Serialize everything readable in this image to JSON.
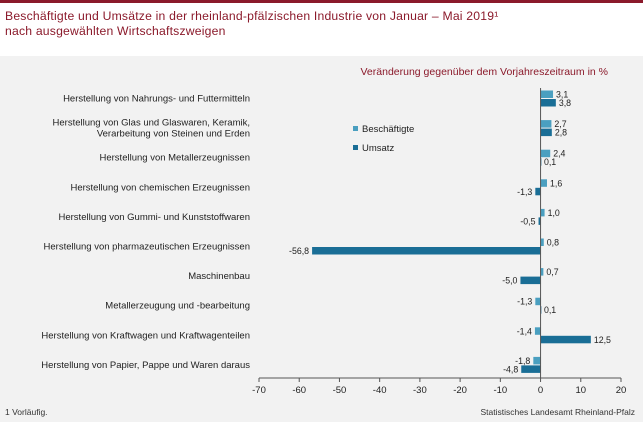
{
  "title_line1": "Beschäftigte und Umsätze in der rheinland-pfälzischen Industrie von Januar – Mai 2019¹",
  "title_line2": "nach ausgewählten Wirtschaftszweigen",
  "footnote": "1 Vorläufig.",
  "source": "Statistisches Landesamt Rheinland-Pfalz",
  "colors": {
    "accent": "#8b1a2b",
    "beschaeftigte": "#4a9fc0",
    "umsatz": "#1a6e96",
    "panel": "#f2f2f2"
  },
  "chart_data": {
    "type": "bar",
    "orientation": "horizontal",
    "subtitle": "Veränderung gegenüber dem Vorjahreszeitraum in %",
    "categories": [
      [
        "Herstellung von Nahrungs- und Futtermitteln"
      ],
      [
        "Herstellung von Glas und Glaswaren, Keramik,",
        "Verarbeitung von Steinen und Erden"
      ],
      [
        "Herstellung von Metallerzeugnissen"
      ],
      [
        "Herstellung von chemischen Erzeugnissen"
      ],
      [
        "Herstellung von Gummi- und Kunststoffwaren"
      ],
      [
        "Herstellung von pharmazeutischen Erzeugnissen"
      ],
      [
        "Maschinenbau"
      ],
      [
        "Metallerzeugung und -bearbeitung"
      ],
      [
        "Herstellung von Kraftwagen und Kraftwagenteilen"
      ],
      [
        "Herstellung von Papier, Pappe und Waren daraus"
      ]
    ],
    "series": [
      {
        "name": "Beschäftigte",
        "values": [
          3.1,
          2.7,
          2.4,
          1.6,
          1.0,
          0.8,
          0.7,
          -1.3,
          -1.4,
          -1.8
        ],
        "labels": [
          "3,1",
          "2,7",
          "2,4",
          "1,6",
          "1,0",
          "0,8",
          "0,7",
          "-1,3",
          "-1,4",
          "-1,8"
        ]
      },
      {
        "name": "Umsatz",
        "values": [
          3.8,
          2.8,
          0.1,
          -1.3,
          -0.5,
          -56.8,
          -5.0,
          0.1,
          12.5,
          -4.8
        ],
        "labels": [
          "3,8",
          "2,8",
          "0,1",
          "-1,3",
          "-0,5",
          "-56,8",
          "-5,0",
          "0,1",
          "12,5",
          "-4,8"
        ]
      }
    ],
    "xlim": [
      -70,
      20
    ],
    "xticks": [
      -70,
      -60,
      -50,
      -40,
      -30,
      -20,
      -10,
      0,
      10,
      20
    ],
    "legend": "upper-middle",
    "grid": false
  }
}
